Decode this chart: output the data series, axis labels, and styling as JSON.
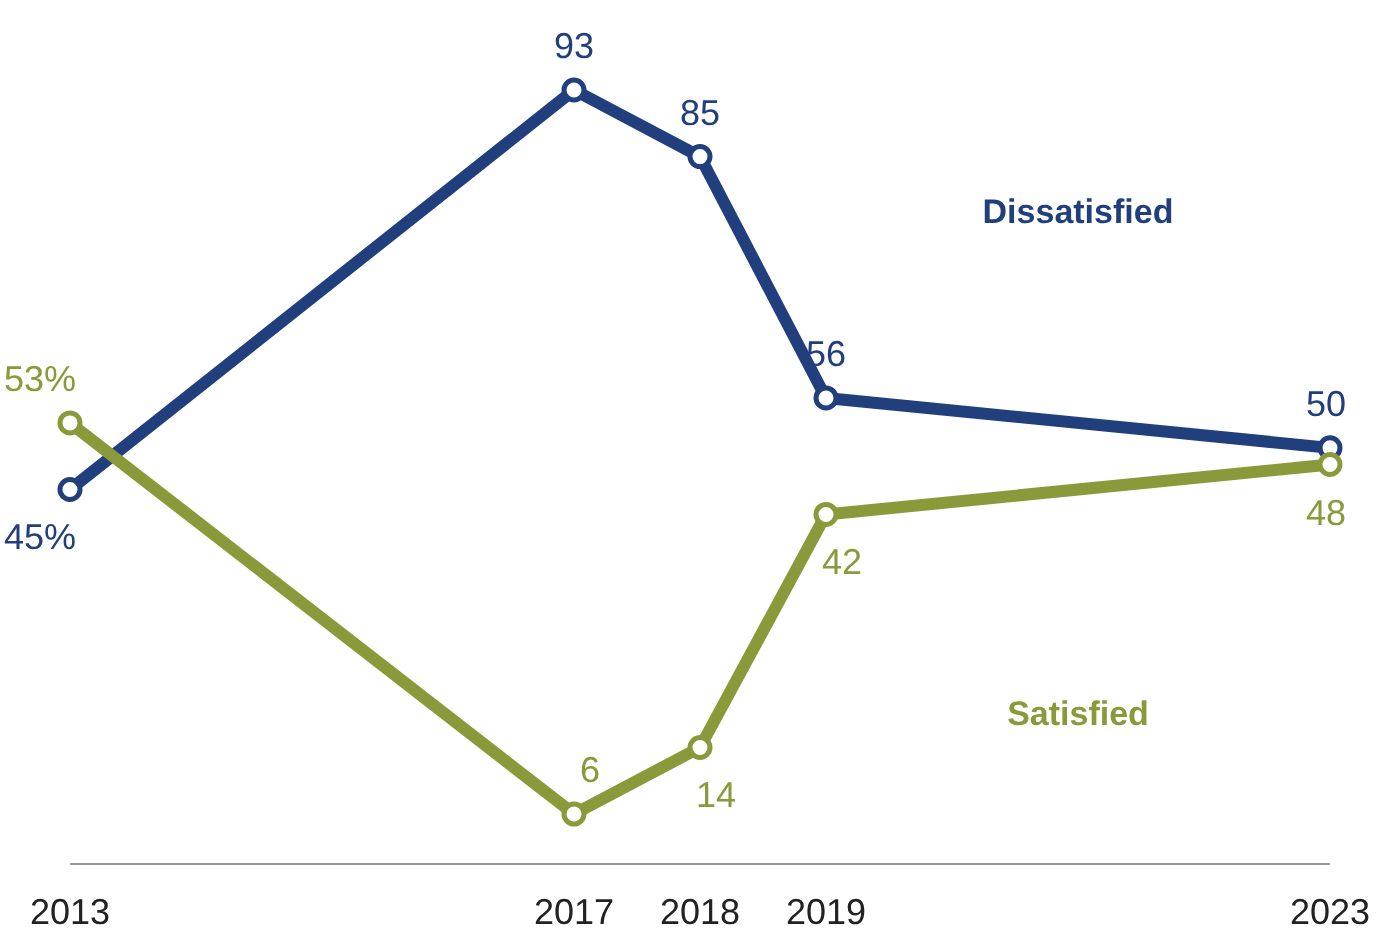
{
  "chart_data": {
    "type": "line",
    "x": [
      2013,
      2017,
      2018,
      2019,
      2023
    ],
    "xlim": [
      2013,
      2023
    ],
    "xticks": [
      2013,
      2017,
      2018,
      2019,
      2023
    ],
    "tick_labels": "x",
    "marker": "circle",
    "line_style": "solid",
    "series": [
      {
        "name": "Dissatisfied",
        "color": "#213f7c",
        "values": [
          45,
          93,
          85,
          56,
          50
        ],
        "value_labels": [
          "45%",
          "93",
          "85",
          "56",
          "50"
        ]
      },
      {
        "name": "Satisfied",
        "color": "#8a9a3a",
        "values": [
          53,
          6,
          14,
          42,
          48
        ],
        "value_labels": [
          "53%",
          "6",
          "14",
          "42",
          "48"
        ]
      }
    ]
  }
}
